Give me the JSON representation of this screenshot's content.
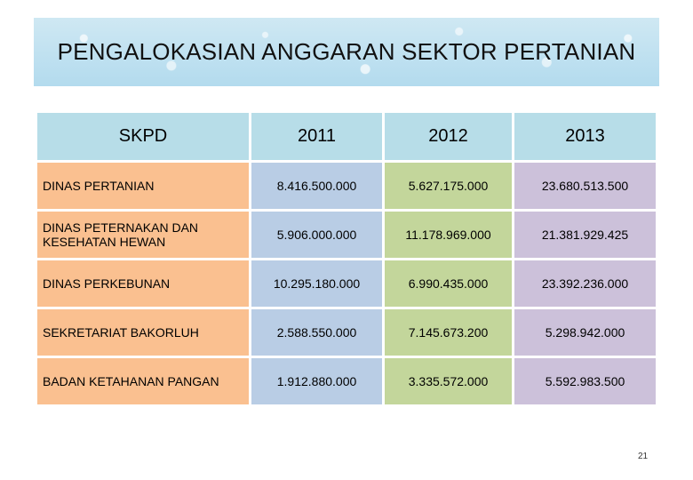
{
  "header": {
    "title": "PENGALOKASIAN ANGGARAN SEKTOR PERTANIAN"
  },
  "table": {
    "headers": [
      "SKPD",
      "2011",
      "2012",
      "2013"
    ],
    "rows": [
      [
        "DINAS PERTANIAN",
        "8.416.500.000",
        "5.627.175.000",
        "23.680.513.500"
      ],
      [
        "DINAS PETERNAKAN DAN KESEHATAN HEWAN",
        "5.906.000.000",
        "11.178.969.000",
        "21.381.929.425"
      ],
      [
        "DINAS PERKEBUNAN",
        "10.295.180.000",
        "6.990.435.000",
        "23.392.236.000"
      ],
      [
        "SEKRETARIAT BAKORLUH",
        "2.588.550.000",
        "7.145.673.200",
        "5.298.942.000"
      ],
      [
        "BADAN KETAHANAN PANGAN",
        "1.912.880.000",
        "3.335.572.000",
        "5.592.983.500"
      ]
    ]
  },
  "footer": {
    "page_number": "21"
  }
}
